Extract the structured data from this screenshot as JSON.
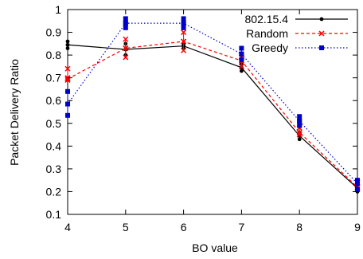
{
  "chart_data": {
    "type": "line",
    "title": "",
    "xlabel": "BO value",
    "ylabel": "Packet Delivery Ratio",
    "x": [
      4,
      5,
      6,
      7,
      8,
      9
    ],
    "xlim": [
      4,
      9
    ],
    "ylim": [
      0.1,
      1.0
    ],
    "xticks": [
      "4",
      "5",
      "6",
      "7",
      "8",
      "9"
    ],
    "yticks": [
      "0.1",
      "0.2",
      "0.3",
      "0.4",
      "0.5",
      "0.6",
      "0.7",
      "0.8",
      "0.9",
      "1"
    ],
    "grid": false,
    "legend_position": "top-right",
    "series": [
      {
        "name": "802.15.4",
        "color": "#000000",
        "line_style": "solid",
        "marker": "dot",
        "values": [
          0.845,
          0.825,
          0.84,
          0.745,
          0.445,
          0.215
        ],
        "samples": [
          [
            0.83,
            0.845,
            0.86
          ],
          [
            0.8,
            0.825,
            0.85
          ],
          [
            0.83,
            0.84,
            0.85
          ],
          [
            0.73,
            0.745,
            0.76
          ],
          [
            0.43,
            0.445,
            0.46
          ],
          [
            0.2,
            0.215,
            0.23
          ]
        ]
      },
      {
        "name": "Random",
        "color": "#ff0000",
        "line_style": "dashed",
        "marker": "x",
        "values": [
          0.695,
          0.83,
          0.86,
          0.775,
          0.46,
          0.22
        ],
        "samples": [
          [
            0.69,
            0.7,
            0.74
          ],
          [
            0.79,
            0.83,
            0.87
          ],
          [
            0.82,
            0.86,
            0.9
          ],
          [
            0.75,
            0.775,
            0.79
          ],
          [
            0.45,
            0.46,
            0.48
          ],
          [
            0.21,
            0.22,
            0.24
          ]
        ]
      },
      {
        "name": "Greedy",
        "color": "#0000cc",
        "line_style": "dotted",
        "marker": "square",
        "values": [
          0.585,
          0.94,
          0.94,
          0.805,
          0.51,
          0.235
        ],
        "samples": [
          [
            0.535,
            0.585,
            0.64
          ],
          [
            0.92,
            0.94,
            0.96
          ],
          [
            0.92,
            0.94,
            0.96
          ],
          [
            0.78,
            0.805,
            0.83
          ],
          [
            0.49,
            0.51,
            0.53
          ],
          [
            0.21,
            0.235,
            0.25
          ]
        ]
      }
    ]
  }
}
